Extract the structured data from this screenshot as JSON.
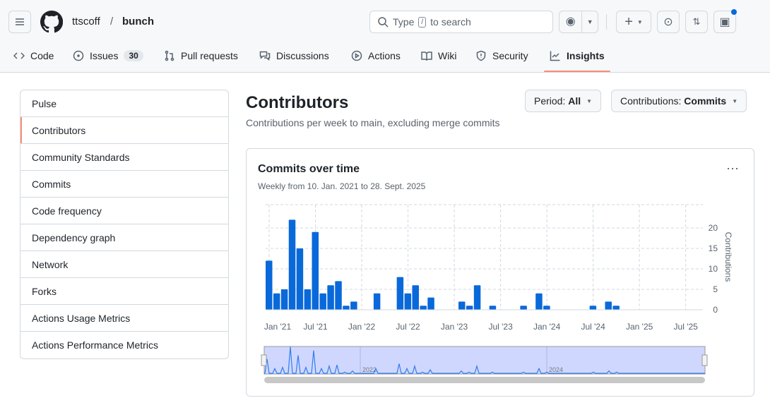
{
  "repo": {
    "owner": "ttscoff",
    "name": "bunch",
    "separator": "/"
  },
  "search": {
    "prefix": "Type",
    "key": "/",
    "suffix": "to search"
  },
  "tabs": [
    {
      "label": "Code",
      "icon": "code-icon"
    },
    {
      "label": "Issues",
      "icon": "issue-icon",
      "count": "30"
    },
    {
      "label": "Pull requests",
      "icon": "pull-request-icon"
    },
    {
      "label": "Discussions",
      "icon": "discussion-icon"
    },
    {
      "label": "Actions",
      "icon": "play-icon"
    },
    {
      "label": "Wiki",
      "icon": "book-icon"
    },
    {
      "label": "Security",
      "icon": "shield-icon"
    },
    {
      "label": "Insights",
      "icon": "graph-icon",
      "active": true
    }
  ],
  "sidebar": [
    "Pulse",
    "Contributors",
    "Community Standards",
    "Commits",
    "Code frequency",
    "Dependency graph",
    "Network",
    "Forks",
    "Actions Usage Metrics",
    "Actions Performance Metrics"
  ],
  "page": {
    "title": "Contributors",
    "subtitle": "Contributions per week to main, excluding merge commits",
    "period_label": "Period:",
    "period_value": "All",
    "contrib_label": "Contributions:",
    "contrib_value": "Commits"
  },
  "colors": {
    "accent": "#fd8c73",
    "bar": "#0969da",
    "navigator": "#d0d7ff"
  },
  "chart_data": {
    "type": "bar",
    "title": "Commits over time",
    "subtitle": "Weekly from 10. Jan. 2021 to 28. Sept. 2025",
    "ylabel": "Contributions",
    "ylim": [
      0,
      25
    ],
    "yticks": [
      0,
      5,
      10,
      15,
      20
    ],
    "xticks": [
      "Jan '21",
      "Jul '21",
      "Jan '22",
      "Jul '22",
      "Jan '23",
      "Jul '23",
      "Jan '24",
      "Jul '24",
      "Jan '25",
      "Jul '25"
    ],
    "start": "2021-01",
    "values": [
      12,
      4,
      5,
      22,
      15,
      5,
      19,
      4,
      6,
      7,
      1,
      2,
      0,
      0,
      4,
      0,
      0,
      8,
      4,
      6,
      1,
      3,
      0,
      0,
      0,
      2,
      1,
      6,
      0,
      1,
      0,
      0,
      0,
      1,
      0,
      4,
      1,
      0,
      0,
      0,
      0,
      0,
      1,
      0,
      2,
      1,
      0,
      0,
      0,
      0,
      0,
      0,
      0,
      0,
      0,
      0,
      0
    ],
    "navigator_labels": [
      "2022",
      "2024"
    ],
    "grid": true
  }
}
